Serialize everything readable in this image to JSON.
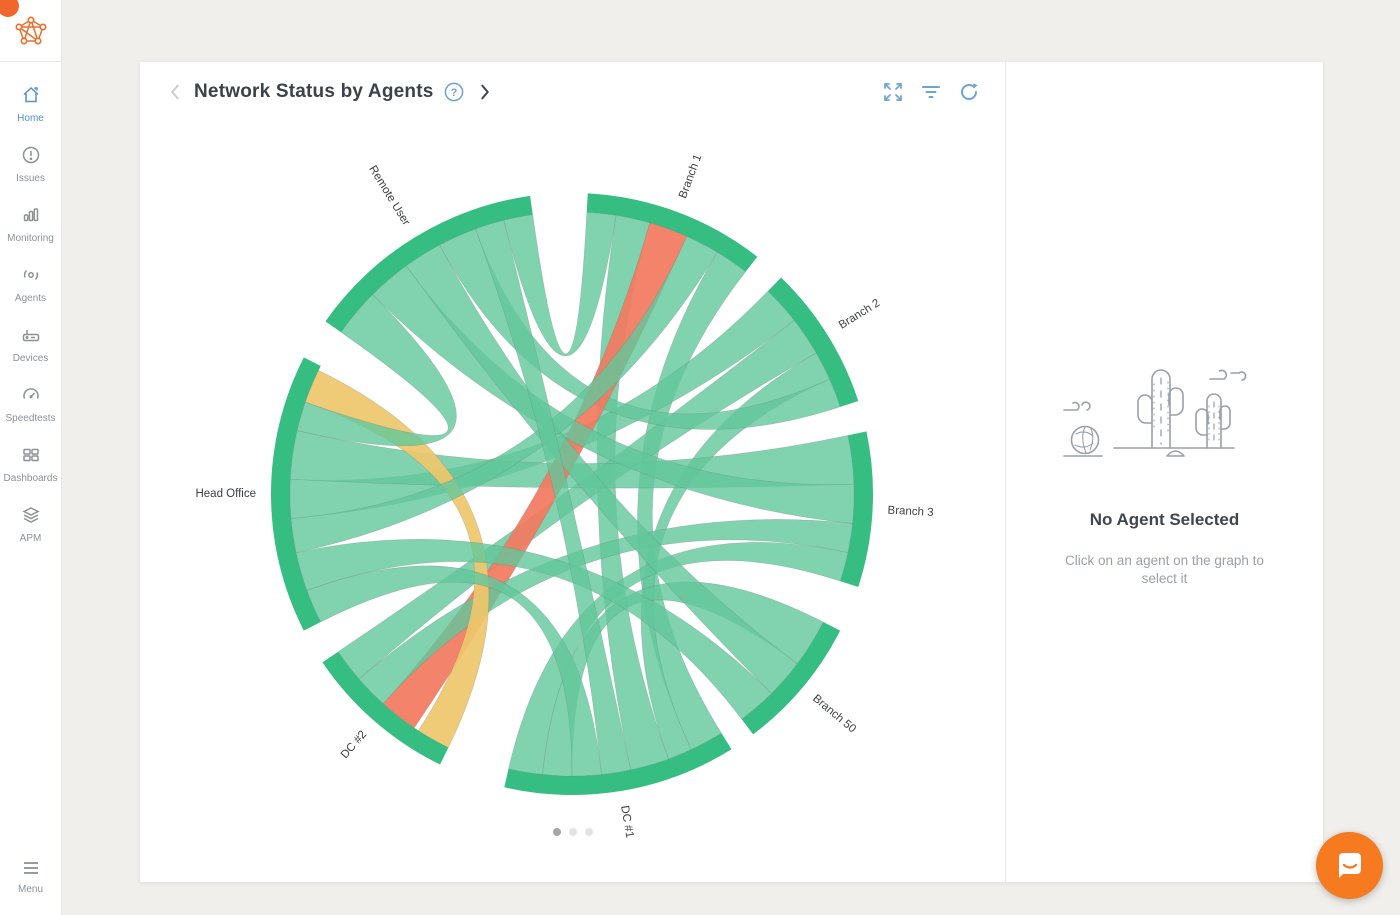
{
  "brand": {
    "logo": "network-graph-logo",
    "logo_color": "#e96f2b",
    "notification_dot_color": "#f0662d"
  },
  "sidebar": {
    "items": [
      {
        "id": "home",
        "label": "Home",
        "icon": "home-icon",
        "active": true
      },
      {
        "id": "issues",
        "label": "Issues",
        "icon": "issues-icon",
        "active": false
      },
      {
        "id": "monitoring",
        "label": "Monitoring",
        "icon": "monitoring-icon",
        "active": false
      },
      {
        "id": "agents",
        "label": "Agents",
        "icon": "agents-icon",
        "active": false
      },
      {
        "id": "devices",
        "label": "Devices",
        "icon": "devices-icon",
        "active": false
      },
      {
        "id": "speedtests",
        "label": "Speedtests",
        "icon": "speedtests-icon",
        "active": false
      },
      {
        "id": "dashboards",
        "label": "Dashboards",
        "icon": "dashboards-icon",
        "active": false
      },
      {
        "id": "apm",
        "label": "APM",
        "icon": "apm-icon",
        "active": false
      }
    ],
    "menu": {
      "label": "Menu",
      "icon": "menu-icon"
    }
  },
  "header": {
    "title": "Network Status by Agents",
    "help_label": "?",
    "actions": [
      {
        "id": "expand",
        "icon": "expand-icon"
      },
      {
        "id": "filter",
        "icon": "filter-icon"
      },
      {
        "id": "refresh",
        "icon": "refresh-icon"
      }
    ],
    "accent_color": "#6fa3d2"
  },
  "chart_data": {
    "type": "chord",
    "title": "Network Status by Agents",
    "description": "Chord diagram of network monitoring sessions between agents; green = OK, yellow = warning, red = critical",
    "colors": {
      "arc": "#35bd82",
      "ok": "#62c79b",
      "warning": "#eec76b",
      "critical": "#f3785f"
    },
    "agents": [
      {
        "name": "Branch 1",
        "start": 3,
        "end": 38
      },
      {
        "name": "Branch 2",
        "start": 44,
        "end": 72
      },
      {
        "name": "Branch 3",
        "start": 78,
        "end": 108
      },
      {
        "name": "Branch 50",
        "start": 117,
        "end": 143
      },
      {
        "name": "DC #1",
        "start": 148,
        "end": 193
      },
      {
        "name": "DC #2",
        "start": 206,
        "end": 236
      },
      {
        "name": "Head Office",
        "start": 243,
        "end": 297
      },
      {
        "name": "Remote User",
        "start": 305,
        "end": 352
      }
    ],
    "ribbons": [
      {
        "source": {
          "agent": "Remote User",
          "start": 346,
          "end": 352
        },
        "target": {
          "agent": "Branch 1",
          "start": 3,
          "end": 9
        },
        "status": "ok"
      },
      {
        "source": {
          "agent": "Branch 1",
          "start": 9,
          "end": 16
        },
        "target": {
          "agent": "DC #1",
          "start": 160,
          "end": 168
        },
        "status": "ok"
      },
      {
        "source": {
          "agent": "Branch 1",
          "start": 31,
          "end": 38
        },
        "target": {
          "agent": "DC #1",
          "start": 148,
          "end": 155
        },
        "status": "ok"
      },
      {
        "source": {
          "agent": "Branch 2",
          "start": 44,
          "end": 52
        },
        "target": {
          "agent": "Head Office",
          "start": 265,
          "end": 273
        },
        "status": "ok"
      },
      {
        "source": {
          "agent": "Branch 2",
          "start": 52,
          "end": 60
        },
        "target": {
          "agent": "DC #2",
          "start": 229,
          "end": 236
        },
        "status": "ok"
      },
      {
        "source": {
          "agent": "Branch 2",
          "start": 60,
          "end": 66
        },
        "target": {
          "agent": "DC #1",
          "start": 155,
          "end": 160
        },
        "status": "ok"
      },
      {
        "source": {
          "agent": "Branch 2",
          "start": 66,
          "end": 72
        },
        "target": {
          "agent": "Remote User",
          "start": 332,
          "end": 340
        },
        "status": "ok"
      },
      {
        "source": {
          "agent": "Branch 3",
          "start": 78,
          "end": 88
        },
        "target": {
          "agent": "Head Office",
          "start": 273,
          "end": 283
        },
        "status": "ok"
      },
      {
        "source": {
          "agent": "Branch 1",
          "start": 16,
          "end": 24
        },
        "target": {
          "agent": "DC #2",
          "start": 214,
          "end": 222
        },
        "status": "critical"
      },
      {
        "source": {
          "agent": "Branch 3",
          "start": 88,
          "end": 96
        },
        "target": {
          "agent": "Remote User",
          "start": 315,
          "end": 324
        },
        "status": "ok"
      },
      {
        "source": {
          "agent": "Branch 3",
          "start": 96,
          "end": 102
        },
        "target": {
          "agent": "DC #2",
          "start": 222,
          "end": 229
        },
        "status": "ok"
      },
      {
        "source": {
          "agent": "Branch 3",
          "start": 102,
          "end": 108
        },
        "target": {
          "agent": "DC #1",
          "start": 186,
          "end": 193
        },
        "status": "ok"
      },
      {
        "source": {
          "agent": "Head Office",
          "start": 289,
          "end": 296
        },
        "target": {
          "agent": "DC #2",
          "start": 206,
          "end": 213
        },
        "status": "warning"
      },
      {
        "source": {
          "agent": "Branch 50",
          "start": 117,
          "end": 127
        },
        "target": {
          "agent": "DC #1",
          "start": 180,
          "end": 186
        },
        "status": "ok"
      },
      {
        "source": {
          "agent": "Branch 50",
          "start": 127,
          "end": 135
        },
        "target": {
          "agent": "Remote User",
          "start": 324,
          "end": 332
        },
        "status": "ok"
      },
      {
        "source": {
          "agent": "Branch 50",
          "start": 135,
          "end": 143
        },
        "target": {
          "agent": "Head Office",
          "start": 250,
          "end": 258
        },
        "status": "ok"
      },
      {
        "source": {
          "agent": "Branch 1",
          "start": 24,
          "end": 31
        },
        "target": {
          "agent": "Head Office",
          "start": 258,
          "end": 265
        },
        "status": "ok"
      },
      {
        "source": {
          "agent": "DC #1",
          "start": 168,
          "end": 174
        },
        "target": {
          "agent": "Remote User",
          "start": 340,
          "end": 346
        },
        "status": "ok"
      },
      {
        "source": {
          "agent": "DC #1",
          "start": 174,
          "end": 180
        },
        "target": {
          "agent": "Head Office",
          "start": 243,
          "end": 250
        },
        "status": "ok"
      },
      {
        "source": {
          "agent": "Head Office",
          "start": 283,
          "end": 289
        },
        "target": {
          "agent": "Remote User",
          "start": 305,
          "end": 315
        },
        "status": "ok"
      }
    ]
  },
  "pagination": {
    "dot_count": 3,
    "active_index": 0
  },
  "agent_panel": {
    "illustration": "desert-cactus-illustration",
    "title": "No Agent Selected",
    "subtitle": "Click on an agent on the graph to select it"
  },
  "chat": {
    "icon": "chat-bubble-icon",
    "color": "#f57a20"
  }
}
